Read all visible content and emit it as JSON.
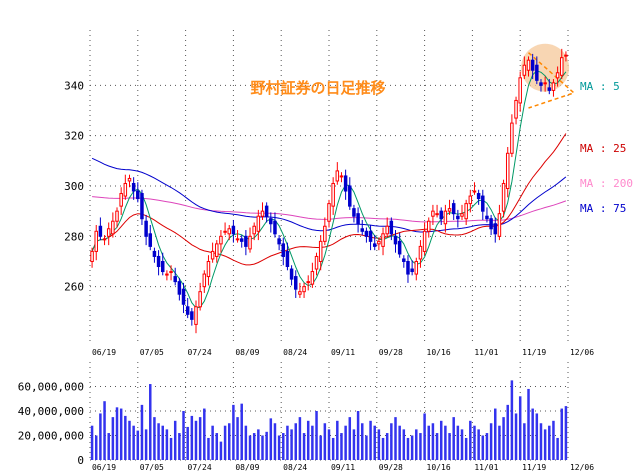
{
  "chart_data": {
    "type": "candlestick",
    "title": "野村証券の日足推移",
    "title_color": "#ff8c1a",
    "up_color": "#ff0000",
    "down_color": "#0000cc",
    "price_axis": {
      "ticks": [
        260,
        280,
        300,
        320,
        340
      ],
      "range": [
        238,
        362
      ]
    },
    "volume_axis": {
      "ticks": [
        "0",
        "20,000,000",
        "40,000,000",
        "60,000,000"
      ],
      "values": [
        0,
        20000000,
        40000000,
        60000000
      ],
      "max": 80000000
    },
    "x_tick_labels": [
      "06/19",
      "07/05",
      "07/24",
      "08/09",
      "08/24",
      "09/11",
      "09/28",
      "10/16",
      "11/01",
      "11/19",
      "12/06"
    ],
    "grid": true,
    "legend": [
      {
        "label": "MA : 5",
        "color": "#009999"
      },
      {
        "label": "MA : 25",
        "color": "#cc0000"
      },
      {
        "label": "MA : 200",
        "color": "#ff88cc"
      },
      {
        "label": "MA : 75",
        "color": "#0000cc"
      }
    ],
    "ma_colors": {
      "ma5": "#009966",
      "ma25": "#dd0000",
      "ma75": "#0000cc",
      "ma200": "#dd44bb"
    },
    "highlight": {
      "fill": "#f6c89a",
      "line": "#ff8800"
    },
    "closes": [
      274,
      282,
      280,
      279,
      283,
      286,
      290,
      297,
      301,
      303,
      298,
      295,
      287,
      280,
      276,
      272,
      268,
      266,
      265,
      266,
      262,
      257,
      253,
      249,
      247,
      252,
      258,
      265,
      270,
      274,
      277,
      280,
      282,
      283,
      281,
      279,
      278,
      276,
      280,
      284,
      288,
      290,
      288,
      285,
      281,
      277,
      272,
      268,
      263,
      259,
      258,
      260,
      262,
      266,
      272,
      278,
      284,
      293,
      301,
      306,
      304,
      298,
      292,
      288,
      285,
      282,
      280,
      278,
      276,
      278,
      281,
      284,
      281,
      277,
      273,
      270,
      265,
      266,
      270,
      276,
      282,
      286,
      290,
      289,
      287,
      290,
      291,
      289,
      287,
      289,
      293,
      296,
      298,
      295,
      290,
      287,
      283,
      281,
      289,
      301,
      313,
      325,
      334,
      343,
      348,
      350,
      346,
      342,
      340,
      341,
      338,
      341,
      345,
      351,
      352
    ],
    "volumes": [
      28,
      20,
      38,
      48,
      22,
      35,
      43,
      42,
      36,
      32,
      28,
      24,
      45,
      25,
      62,
      35,
      30,
      28,
      25,
      18,
      32,
      22,
      40,
      27,
      36,
      32,
      35,
      42,
      18,
      28,
      22,
      15,
      28,
      30,
      45,
      35,
      46,
      28,
      20,
      22,
      25,
      20,
      23,
      34,
      30,
      20,
      22,
      28,
      25,
      30,
      35,
      22,
      32,
      28,
      40,
      20,
      30,
      25,
      18,
      32,
      22,
      28,
      35,
      25,
      40,
      30,
      20,
      32,
      28,
      25,
      18,
      22,
      30,
      35,
      28,
      25,
      18,
      20,
      25,
      22,
      38,
      28,
      30,
      22,
      32,
      28,
      22,
      35,
      28,
      25,
      18,
      32,
      28,
      25,
      20,
      22,
      30,
      42,
      28,
      35,
      45,
      65,
      38,
      52,
      30,
      58,
      42,
      38,
      30,
      25,
      28,
      32,
      18,
      42,
      44
    ]
  }
}
